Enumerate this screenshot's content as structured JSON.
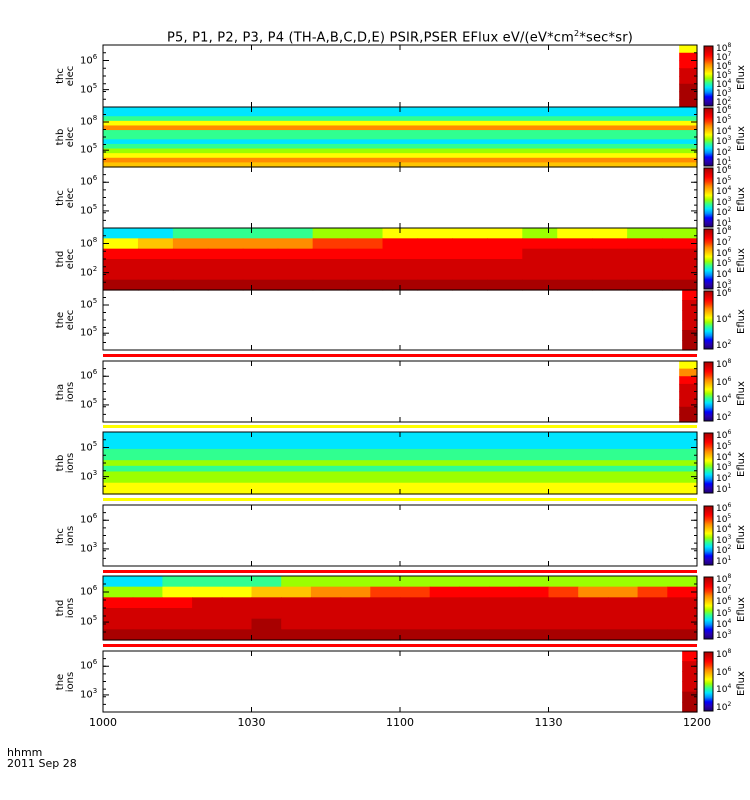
{
  "title": {
    "text_before": "P5, P1, P2, P3, P4  (TH-A,B,C,D,E)  PSIR,PSER EFlux eV/(eV*cm",
    "sup": "2",
    "text_after": "*sec*sr)"
  },
  "footer": {
    "line1": "hhmm",
    "line2": "2011 Sep 28"
  },
  "x_axis": {
    "ticks": [
      "1000",
      "1030",
      "1100",
      "1130",
      "1200"
    ]
  },
  "colorbar_title": "Eflux",
  "palette": [
    "#1a0073",
    "#2a00b0",
    "#0000ff",
    "#0090ff",
    "#00e5ff",
    "#30ff90",
    "#9cff00",
    "#ffff00",
    "#ffc400",
    "#ff8c00",
    "#ff3a00",
    "#ff0000",
    "#d20000",
    "#a80000"
  ],
  "chart_data": [
    {
      "type": "heatmap",
      "label": [
        "thc",
        "elec"
      ],
      "ylog_labels": [
        [
          "10",
          "6"
        ],
        [
          "10",
          "5"
        ]
      ],
      "cbar_labels": [
        [
          "10",
          "8"
        ],
        [
          "10",
          "7"
        ],
        [
          "10",
          "6"
        ],
        [
          "10",
          "5"
        ],
        [
          "10",
          "4"
        ],
        [
          "10",
          "3"
        ],
        [
          "10",
          "2"
        ]
      ],
      "xlim": [
        "1000",
        "1200"
      ],
      "data_region": [
        0.97,
        1.0
      ],
      "rows": [
        [
          7
        ],
        [
          11
        ],
        [
          11
        ],
        [
          12
        ],
        [
          12
        ],
        [
          13
        ],
        [
          13
        ],
        [
          13
        ]
      ]
    },
    {
      "type": "heatmap",
      "label": [
        "thb",
        "elec"
      ],
      "ylog_labels": [
        [
          "10",
          "8"
        ],
        [
          "10",
          "5"
        ]
      ],
      "cbar_labels": [
        [
          "10",
          "6"
        ],
        [
          "10",
          "5"
        ],
        [
          "10",
          "4"
        ],
        [
          "10",
          "3"
        ],
        [
          "10",
          "2"
        ],
        [
          "10",
          "1"
        ]
      ],
      "xlim": [
        "1000",
        "1200"
      ],
      "data_region": [
        0.0,
        1.0
      ],
      "rows": [
        [
          4
        ],
        [
          4
        ],
        [
          5
        ],
        [
          7
        ],
        [
          9
        ],
        [
          5
        ],
        [
          5
        ],
        [
          4
        ],
        [
          5
        ],
        [
          6
        ],
        [
          7
        ],
        [
          9
        ],
        [
          8
        ]
      ]
    },
    {
      "type": "heatmap",
      "label": [
        "thc",
        "elec"
      ],
      "ylog_labels": [
        [
          "10",
          "6"
        ],
        [
          "10",
          "5"
        ]
      ],
      "cbar_labels": [
        [
          "10",
          "6"
        ],
        [
          "10",
          "5"
        ],
        [
          "10",
          "4"
        ],
        [
          "10",
          "3"
        ],
        [
          "10",
          "2"
        ],
        [
          "10",
          "1"
        ]
      ],
      "xlim": [
        "1000",
        "1200"
      ],
      "data_region": [
        0,
        0
      ],
      "rows": []
    },
    {
      "type": "heatmap",
      "label": [
        "thd",
        "elec"
      ],
      "ylog_labels": [
        [
          "10",
          "8"
        ],
        [
          "10",
          "2"
        ]
      ],
      "cbar_labels": [
        [
          "10",
          "8"
        ],
        [
          "10",
          "7"
        ],
        [
          "10",
          "6"
        ],
        [
          "10",
          "5"
        ],
        [
          "10",
          "4"
        ],
        [
          "10",
          "3"
        ]
      ],
      "xlim": [
        "1000",
        "1200"
      ],
      "data_region": [
        0.0,
        1.0
      ],
      "rows": [
        [
          4,
          4,
          5,
          5,
          5,
          5,
          6,
          6,
          7,
          7,
          7,
          7,
          6,
          7,
          7,
          6,
          6
        ],
        [
          7,
          8,
          9,
          9,
          9,
          9,
          10,
          10,
          11,
          11,
          11,
          11,
          11,
          11,
          11,
          11,
          11
        ],
        [
          11,
          11,
          11,
          11,
          11,
          11,
          11,
          11,
          11,
          11,
          11,
          11,
          12,
          12,
          12,
          12,
          12
        ],
        [
          12,
          12,
          12,
          12,
          12,
          12,
          12,
          12,
          12,
          12,
          12,
          12,
          12,
          12,
          12,
          12,
          12
        ],
        [
          12,
          12,
          12,
          12,
          12,
          12,
          12,
          12,
          12,
          12,
          12,
          12,
          12,
          12,
          12,
          12,
          12
        ],
        [
          13,
          13,
          13,
          13,
          13,
          13,
          13,
          13,
          13,
          13,
          13,
          13,
          13,
          13,
          13,
          13,
          13
        ]
      ]
    },
    {
      "type": "heatmap",
      "label": [
        "the",
        "elec"
      ],
      "ylog_labels": [
        [
          "10",
          "5"
        ],
        [
          "10",
          "5"
        ]
      ],
      "cbar_labels": [
        [
          "10",
          "6"
        ],
        [
          "10",
          "4"
        ],
        [
          "10",
          "2"
        ]
      ],
      "xlim": [
        "1000",
        "1200"
      ],
      "data_region": [
        0.975,
        1.0
      ],
      "rows": [
        [
          11
        ],
        [
          12
        ],
        [
          12
        ],
        [
          12
        ],
        [
          13
        ],
        [
          13
        ]
      ]
    },
    {
      "type": "heatmap",
      "label": [
        "tha",
        "ions"
      ],
      "ylog_labels": [
        [
          "10",
          "6"
        ],
        [
          "10",
          "5"
        ]
      ],
      "cbar_labels": [
        [
          "10",
          "8"
        ],
        [
          "10",
          "6"
        ],
        [
          "10",
          "4"
        ],
        [
          "10",
          "2"
        ]
      ],
      "xlim": [
        "1000",
        "1200"
      ],
      "data_region": [
        0.97,
        1.0
      ],
      "rows": [
        [
          7
        ],
        [
          9
        ],
        [
          11
        ],
        [
          12
        ],
        [
          12
        ],
        [
          12
        ],
        [
          13
        ],
        [
          13
        ]
      ]
    },
    {
      "type": "heatmap",
      "label": [
        "thb",
        "ions"
      ],
      "ylog_labels": [
        [
          "10",
          "5"
        ],
        [
          "10",
          "3"
        ]
      ],
      "cbar_labels": [
        [
          "10",
          "6"
        ],
        [
          "10",
          "5"
        ],
        [
          "10",
          "4"
        ],
        [
          "10",
          "3"
        ],
        [
          "10",
          "2"
        ],
        [
          "10",
          "1"
        ]
      ],
      "xlim": [
        "1000",
        "1200"
      ],
      "data_region": [
        0.0,
        1.0
      ],
      "rows": [
        [
          4
        ],
        [
          4
        ],
        [
          4
        ],
        [
          5
        ],
        [
          5
        ],
        [
          6
        ],
        [
          5
        ],
        [
          6
        ],
        [
          6
        ],
        [
          7
        ],
        [
          7
        ]
      ]
    },
    {
      "type": "heatmap",
      "label": [
        "thc",
        "ions"
      ],
      "ylog_labels": [
        [
          "10",
          "6"
        ],
        [
          "10",
          "3"
        ]
      ],
      "cbar_labels": [
        [
          "10",
          "6"
        ],
        [
          "10",
          "5"
        ],
        [
          "10",
          "4"
        ],
        [
          "10",
          "3"
        ],
        [
          "10",
          "2"
        ],
        [
          "10",
          "1"
        ]
      ],
      "xlim": [
        "1000",
        "1200"
      ],
      "data_region": [
        0,
        0
      ],
      "rows": []
    },
    {
      "type": "heatmap",
      "label": [
        "thd",
        "ions"
      ],
      "ylog_labels": [
        [
          "10",
          "6"
        ],
        [
          "10",
          "5"
        ]
      ],
      "cbar_labels": [
        [
          "10",
          "8"
        ],
        [
          "10",
          "7"
        ],
        [
          "10",
          "6"
        ],
        [
          "10",
          "5"
        ],
        [
          "10",
          "4"
        ],
        [
          "10",
          "3"
        ]
      ],
      "xlim": [
        "1000",
        "1200"
      ],
      "data_region": [
        0.0,
        1.0
      ],
      "rows": [
        [
          4,
          4,
          5,
          5,
          5,
          5,
          6,
          6,
          6,
          6,
          6,
          6,
          6,
          6,
          6,
          6,
          6,
          6,
          6,
          6
        ],
        [
          6,
          6,
          7,
          7,
          7,
          8,
          8,
          9,
          9,
          10,
          10,
          11,
          11,
          11,
          11,
          10,
          9,
          9,
          10,
          11
        ],
        [
          11,
          11,
          11,
          12,
          12,
          12,
          12,
          12,
          12,
          12,
          12,
          12,
          12,
          12,
          12,
          12,
          12,
          12,
          12,
          12
        ],
        [
          12,
          12,
          12,
          12,
          12,
          12,
          12,
          12,
          12,
          12,
          12,
          12,
          12,
          12,
          12,
          12,
          12,
          12,
          12,
          12
        ],
        [
          12,
          12,
          12,
          12,
          12,
          13,
          12,
          12,
          12,
          12,
          12,
          12,
          12,
          12,
          12,
          12,
          12,
          12,
          12,
          12
        ],
        [
          13,
          13,
          13,
          13,
          13,
          13,
          13,
          13,
          13,
          13,
          13,
          13,
          13,
          13,
          13,
          13,
          13,
          13,
          13,
          13
        ]
      ]
    },
    {
      "type": "heatmap",
      "label": [
        "the",
        "ions"
      ],
      "ylog_labels": [
        [
          "10",
          "6"
        ],
        [
          "10",
          "3"
        ]
      ],
      "cbar_labels": [
        [
          "10",
          "8"
        ],
        [
          "10",
          "6"
        ],
        [
          "10",
          "4"
        ],
        [
          "10",
          "2"
        ]
      ],
      "xlim": [
        "1000",
        "1200"
      ],
      "data_region": [
        0.975,
        1.0
      ],
      "rows": [
        [
          11
        ],
        [
          12
        ],
        [
          12
        ],
        [
          12
        ],
        [
          13
        ],
        [
          13
        ]
      ]
    }
  ]
}
